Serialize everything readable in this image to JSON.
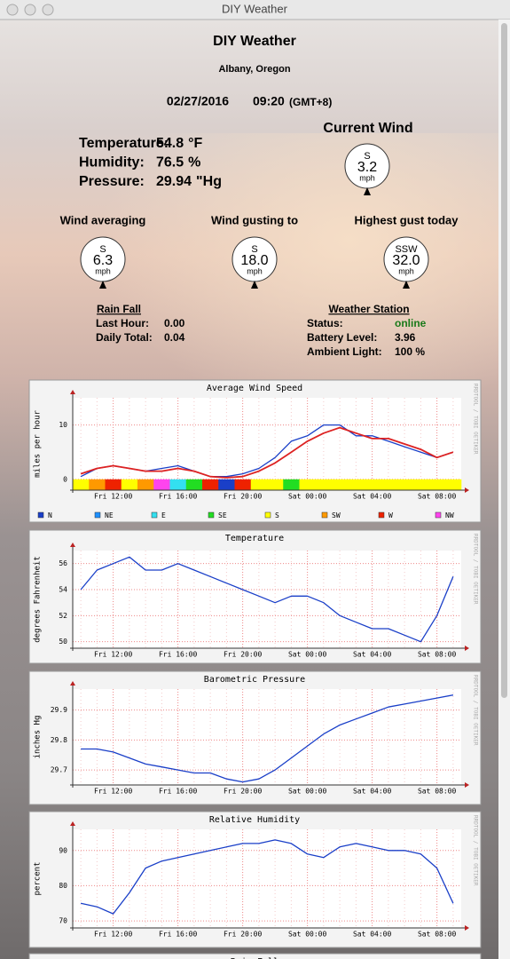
{
  "window": {
    "title": "DIY Weather"
  },
  "header": {
    "title": "DIY Weather",
    "location": "Albany, Oregon",
    "date": "02/27/2016",
    "time": "09:20",
    "timezone": "(GMT+8)"
  },
  "conditions": [
    {
      "label": "Temperature:",
      "value": "54.8",
      "unit": "°F"
    },
    {
      "label": "Humidity:",
      "value": "76.5",
      "unit": "%"
    },
    {
      "label": "Pressure:",
      "value": "29.94",
      "unit": "\"Hg"
    }
  ],
  "current_wind": {
    "title": "Current Wind",
    "direction": "S",
    "speed": "3.2",
    "unit": "mph"
  },
  "gauges": [
    {
      "title": "Wind averaging",
      "direction": "S",
      "speed": "6.3",
      "unit": "mph"
    },
    {
      "title": "Wind gusting to",
      "direction": "S",
      "speed": "18.0",
      "unit": "mph"
    },
    {
      "title": "Highest gust today",
      "direction": "SSW",
      "speed": "32.0",
      "unit": "mph"
    }
  ],
  "rain": {
    "title": "Rain Fall",
    "rows": [
      [
        "Last Hour:",
        "0.00"
      ],
      [
        "Daily Total:",
        "0.04"
      ]
    ]
  },
  "station": {
    "title": "Weather Station",
    "rows": [
      [
        "Status:",
        "online"
      ],
      [
        "Battery Level:",
        "3.96"
      ],
      [
        "Ambient Light:",
        "100 %"
      ]
    ]
  },
  "next_chart": {
    "title": "Rain Fall"
  },
  "chart_data": [
    {
      "type": "line",
      "title": "Average Wind Speed",
      "y_label": "miles per hour",
      "watermark": "RRDTOOL / TOBI OETIKER",
      "categories": [
        null,
        null,
        "Fri 12:00",
        null,
        null,
        null,
        "Fri 16:00",
        null,
        null,
        null,
        "Fri 20:00",
        null,
        null,
        null,
        "Sat 00:00",
        null,
        null,
        null,
        "Sat 04:00",
        null,
        null,
        null,
        "Sat 08:00",
        null
      ],
      "ylim": [
        -2,
        15
      ],
      "yticks": [
        0,
        10
      ],
      "grid": true,
      "series": [
        {
          "name": "Wind Speed",
          "color": "#1a3fc8",
          "values": [
            0.5,
            2,
            2.5,
            2,
            1.5,
            2,
            2.5,
            1.5,
            0.5,
            0.5,
            1,
            2,
            4,
            7,
            8,
            10,
            10,
            8,
            8,
            7,
            6,
            5,
            4,
            5
          ]
        },
        {
          "name": "Average",
          "color": "#dd2222",
          "values": [
            1,
            2,
            2.5,
            2,
            1.5,
            1.5,
            2,
            1.5,
            0.5,
            0.3,
            0.5,
            1.5,
            3,
            5,
            7,
            8.5,
            9.5,
            8.5,
            7.5,
            7.5,
            6.5,
            5.5,
            4,
            5
          ]
        }
      ],
      "legend": [
        {
          "name": "N",
          "color": "#1a3fc8"
        },
        {
          "name": "NE",
          "color": "#1e90ff"
        },
        {
          "name": "E",
          "color": "#33e0f0"
        },
        {
          "name": "SE",
          "color": "#22dd22"
        },
        {
          "name": "S",
          "color": "#ffff00"
        },
        {
          "name": "SW",
          "color": "#ff9900"
        },
        {
          "name": "W",
          "color": "#ee2200"
        },
        {
          "name": "NW",
          "color": "#ff44ee"
        }
      ],
      "directions": [
        "S",
        "SW",
        "W",
        "S",
        "SW",
        "NW",
        "E",
        "SE",
        "W",
        "N",
        "W",
        "S",
        "S",
        "SE",
        "S",
        "S",
        "S",
        "S",
        "S",
        "S",
        "S",
        "S",
        "S",
        "S"
      ]
    },
    {
      "type": "line",
      "title": "Temperature",
      "y_label": "degrees Fahrenheit",
      "watermark": "RRDTOOL / TOBI OETIKER",
      "categories": [
        null,
        null,
        "Fri 12:00",
        null,
        null,
        null,
        "Fri 16:00",
        null,
        null,
        null,
        "Fri 20:00",
        null,
        null,
        null,
        "Sat 00:00",
        null,
        null,
        null,
        "Sat 04:00",
        null,
        null,
        null,
        "Sat 08:00",
        null
      ],
      "ylim": [
        49.5,
        57
      ],
      "yticks": [
        50,
        52,
        54,
        56
      ],
      "grid": true,
      "series": [
        {
          "name": "Temperature",
          "color": "#1a3fc8",
          "values": [
            54,
            55.5,
            56,
            56.5,
            55.5,
            55.5,
            56,
            55.5,
            55,
            54.5,
            54,
            53.5,
            53,
            53.5,
            53.5,
            53,
            52,
            51.5,
            51,
            51,
            50.5,
            50,
            52,
            55
          ]
        }
      ]
    },
    {
      "type": "line",
      "title": "Barometric Pressure",
      "y_label": "inches Hg",
      "watermark": "RRDTOOL / TOBI OETIKER",
      "categories": [
        null,
        null,
        "Fri 12:00",
        null,
        null,
        null,
        "Fri 16:00",
        null,
        null,
        null,
        "Fri 20:00",
        null,
        null,
        null,
        "Sat 00:00",
        null,
        null,
        null,
        "Sat 04:00",
        null,
        null,
        null,
        "Sat 08:00",
        null
      ],
      "ylim": [
        29.65,
        29.97
      ],
      "yticks": [
        29.7,
        29.8,
        29.9
      ],
      "grid": true,
      "series": [
        {
          "name": "Pressure",
          "color": "#1a3fc8",
          "values": [
            29.77,
            29.77,
            29.76,
            29.74,
            29.72,
            29.71,
            29.7,
            29.69,
            29.69,
            29.67,
            29.66,
            29.67,
            29.7,
            29.74,
            29.78,
            29.82,
            29.85,
            29.87,
            29.89,
            29.91,
            29.92,
            29.93,
            29.94,
            29.95
          ]
        }
      ]
    },
    {
      "type": "line",
      "title": "Relative Humidity",
      "y_label": "percent",
      "watermark": "RRDTOOL / TOBI OETIKER",
      "categories": [
        null,
        null,
        "Fri 12:00",
        null,
        null,
        null,
        "Fri 16:00",
        null,
        null,
        null,
        "Fri 20:00",
        null,
        null,
        null,
        "Sat 00:00",
        null,
        null,
        null,
        "Sat 04:00",
        null,
        null,
        null,
        "Sat 08:00",
        null
      ],
      "ylim": [
        68,
        96
      ],
      "yticks": [
        70,
        80,
        90
      ],
      "grid": true,
      "series": [
        {
          "name": "Humidity",
          "color": "#1a3fc8",
          "values": [
            75,
            74,
            72,
            78,
            85,
            87,
            88,
            89,
            90,
            91,
            92,
            92,
            93,
            92,
            89,
            88,
            91,
            92,
            91,
            90,
            90,
            89,
            85,
            75
          ]
        }
      ]
    }
  ]
}
